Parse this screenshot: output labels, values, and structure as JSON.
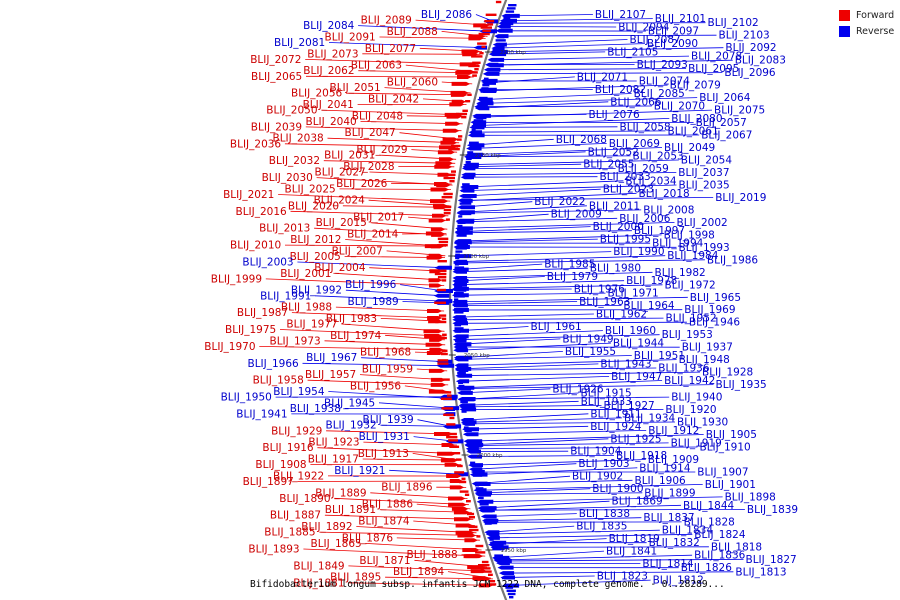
{
  "colors": {
    "forward": "#ee0000",
    "reverse": "#0000ee",
    "forward_label": "#cc0000",
    "reverse_label": "#0000cc",
    "backbone": "#777777"
  },
  "legend": {
    "forward_label": "Forward",
    "reverse_label": "Reverse"
  },
  "caption": "Bifidobacterium longum subsp. infantis JCM 1222 DNA, complete genome. - 0..28289...",
  "ticks": [
    "2200 kbp",
    "2150 kbp",
    "2100 kbp",
    "2050 kbp",
    "2000 kbp",
    "1950 kbp"
  ],
  "labels_left": [
    {
      "text": "BLIJ_2086",
      "s": "r"
    },
    {
      "text": "BLIJ_2089",
      "s": "f"
    },
    {
      "text": "BLIJ_2084",
      "s": "r"
    },
    {
      "text": "BLIJ_2088",
      "s": "f"
    },
    {
      "text": "BLIJ_2091",
      "s": "f"
    },
    {
      "text": "BLIJ_2081",
      "s": "r"
    },
    {
      "text": "BLIJ_2077",
      "s": "f"
    },
    {
      "text": "BLIJ_2073",
      "s": "f"
    },
    {
      "text": "BLIJ_2072",
      "s": "f"
    },
    {
      "text": "BLIJ_2063",
      "s": "f"
    },
    {
      "text": "BLIJ_2062",
      "s": "f"
    },
    {
      "text": "BLIJ_2065",
      "s": "f"
    },
    {
      "text": "BLIJ_2060",
      "s": "f"
    },
    {
      "text": "BLIJ_2051",
      "s": "f"
    },
    {
      "text": "BLIJ_2056",
      "s": "f"
    },
    {
      "text": "BLIJ_2042",
      "s": "f"
    },
    {
      "text": "BLIJ_2041",
      "s": "f"
    },
    {
      "text": "BLIJ_2050",
      "s": "f"
    },
    {
      "text": "BLIJ_2048",
      "s": "f"
    },
    {
      "text": "BLIJ_2040",
      "s": "f"
    },
    {
      "text": "BLIJ_2039",
      "s": "f"
    },
    {
      "text": "BLIJ_2047",
      "s": "f"
    },
    {
      "text": "BLIJ_2038",
      "s": "f"
    },
    {
      "text": "BLIJ_2036",
      "s": "f"
    },
    {
      "text": "BLIJ_2029",
      "s": "f"
    },
    {
      "text": "BLIJ_2031",
      "s": "f"
    },
    {
      "text": "BLIJ_2032",
      "s": "f"
    },
    {
      "text": "BLIJ_2028",
      "s": "f"
    },
    {
      "text": "BLIJ_2027",
      "s": "f"
    },
    {
      "text": "BLIJ_2030",
      "s": "f"
    },
    {
      "text": "BLIJ_2026",
      "s": "f"
    },
    {
      "text": "BLIJ_2025",
      "s": "f"
    },
    {
      "text": "BLIJ_2021",
      "s": "f"
    },
    {
      "text": "BLIJ_2024",
      "s": "f"
    },
    {
      "text": "BLIJ_2020",
      "s": "f"
    },
    {
      "text": "BLIJ_2016",
      "s": "f"
    },
    {
      "text": "BLIJ_2017",
      "s": "f"
    },
    {
      "text": "BLIJ_2015",
      "s": "f"
    },
    {
      "text": "BLIJ_2013",
      "s": "f"
    },
    {
      "text": "BLIJ_2014",
      "s": "f"
    },
    {
      "text": "BLIJ_2012",
      "s": "f"
    },
    {
      "text": "BLIJ_2010",
      "s": "f"
    },
    {
      "text": "BLIJ_2007",
      "s": "f"
    },
    {
      "text": "BLIJ_2005",
      "s": "f"
    },
    {
      "text": "BLIJ_2003",
      "s": "r"
    },
    {
      "text": "BLIJ_2004",
      "s": "f"
    },
    {
      "text": "BLIJ_2001",
      "s": "f"
    },
    {
      "text": "BLIJ_1999",
      "s": "f"
    },
    {
      "text": "BLIJ_1996",
      "s": "r"
    },
    {
      "text": "BLIJ_1992",
      "s": "r"
    },
    {
      "text": "BLIJ_1991",
      "s": "r"
    },
    {
      "text": "BLIJ_1989",
      "s": "r"
    },
    {
      "text": "BLIJ_1988",
      "s": "f"
    },
    {
      "text": "BLIJ_1987",
      "s": "f"
    },
    {
      "text": "BLIJ_1983",
      "s": "f"
    },
    {
      "text": "BLIJ_1977",
      "s": "f"
    },
    {
      "text": "BLIJ_1975",
      "s": "f"
    },
    {
      "text": "BLIJ_1974",
      "s": "f"
    },
    {
      "text": "BLIJ_1973",
      "s": "f"
    },
    {
      "text": "BLIJ_1970",
      "s": "f"
    },
    {
      "text": "BLIJ_1968",
      "s": "f"
    },
    {
      "text": "BLIJ_1967",
      "s": "r"
    },
    {
      "text": "BLIJ_1966",
      "s": "r"
    },
    {
      "text": "BLIJ_1959",
      "s": "f"
    },
    {
      "text": "BLIJ_1957",
      "s": "f"
    },
    {
      "text": "BLIJ_1958",
      "s": "f"
    },
    {
      "text": "BLIJ_1956",
      "s": "f"
    },
    {
      "text": "BLIJ_1954",
      "s": "r"
    },
    {
      "text": "BLIJ_1950",
      "s": "r"
    },
    {
      "text": "BLIJ_1945",
      "s": "r"
    },
    {
      "text": "BLIJ_1938",
      "s": "r"
    },
    {
      "text": "BLIJ_1941",
      "s": "r"
    },
    {
      "text": "BLIJ_1939",
      "s": "r"
    },
    {
      "text": "BLIJ_1932",
      "s": "r"
    },
    {
      "text": "BLIJ_1929",
      "s": "f"
    },
    {
      "text": "BLIJ_1931",
      "s": "r"
    },
    {
      "text": "BLIJ_1923",
      "s": "f"
    },
    {
      "text": "BLIJ_1916",
      "s": "f"
    },
    {
      "text": "BLIJ_1913",
      "s": "f"
    },
    {
      "text": "BLIJ_1917",
      "s": "f"
    },
    {
      "text": "BLIJ_1908",
      "s": "f"
    },
    {
      "text": "BLIJ_1921",
      "s": "r"
    },
    {
      "text": "BLIJ_1922",
      "s": "f"
    },
    {
      "text": "BLIJ_1897",
      "s": "f"
    },
    {
      "text": "BLIJ_1896",
      "s": "f"
    },
    {
      "text": "BLIJ_1889",
      "s": "f"
    },
    {
      "text": "BLIJ_1890",
      "s": "f"
    },
    {
      "text": "BLIJ_1886",
      "s": "f"
    },
    {
      "text": "BLIJ_1891",
      "s": "f"
    },
    {
      "text": "BLIJ_1887",
      "s": "f"
    },
    {
      "text": "BLIJ_1874",
      "s": "f"
    },
    {
      "text": "BLIJ_1892",
      "s": "f"
    },
    {
      "text": "BLIJ_1885",
      "s": "f"
    },
    {
      "text": "BLIJ_1876",
      "s": "f"
    },
    {
      "text": "BLIJ_1865",
      "s": "f"
    },
    {
      "text": "BLIJ_1893",
      "s": "f"
    },
    {
      "text": "BLIJ_1888",
      "s": "f"
    },
    {
      "text": "BLIJ_1871",
      "s": "f"
    },
    {
      "text": "BLIJ_1849",
      "s": "f"
    },
    {
      "text": "BLIJ_1894",
      "s": "f"
    },
    {
      "text": "BLIJ_1895",
      "s": "f"
    },
    {
      "text": "BLIJ_1881",
      "s": "f"
    }
  ],
  "labels_right": [
    {
      "text": "BLIJ_2107",
      "s": "r"
    },
    {
      "text": "BLIJ_2101",
      "s": "r"
    },
    {
      "text": "BLIJ_2102",
      "s": "r"
    },
    {
      "text": "BLIJ_2094",
      "s": "r"
    },
    {
      "text": "BLIJ_2097",
      "s": "r"
    },
    {
      "text": "BLIJ_2103",
      "s": "r"
    },
    {
      "text": "BLIJ_2087",
      "s": "r"
    },
    {
      "text": "BLIJ_2090",
      "s": "r"
    },
    {
      "text": "BLIJ_2092",
      "s": "r"
    },
    {
      "text": "BLIJ_2105",
      "s": "r"
    },
    {
      "text": "BLIJ_2078",
      "s": "r"
    },
    {
      "text": "BLIJ_2083",
      "s": "r"
    },
    {
      "text": "BLIJ_2093",
      "s": "r"
    },
    {
      "text": "BLIJ_2095",
      "s": "r"
    },
    {
      "text": "BLIJ_2096",
      "s": "r"
    },
    {
      "text": "BLIJ_2071",
      "s": "r"
    },
    {
      "text": "BLIJ_2074",
      "s": "r"
    },
    {
      "text": "BLIJ_2079",
      "s": "r"
    },
    {
      "text": "BLIJ_2082",
      "s": "r"
    },
    {
      "text": "BLIJ_2085",
      "s": "r"
    },
    {
      "text": "BLIJ_2064",
      "s": "r"
    },
    {
      "text": "BLIJ_2066",
      "s": "r"
    },
    {
      "text": "BLIJ_2070",
      "s": "r"
    },
    {
      "text": "BLIJ_2075",
      "s": "r"
    },
    {
      "text": "BLIJ_2076",
      "s": "r"
    },
    {
      "text": "BLIJ_2080",
      "s": "r"
    },
    {
      "text": "BLIJ_2057",
      "s": "r"
    },
    {
      "text": "BLIJ_2058",
      "s": "r"
    },
    {
      "text": "BLIJ_2061",
      "s": "r"
    },
    {
      "text": "BLIJ_2067",
      "s": "r"
    },
    {
      "text": "BLIJ_2068",
      "s": "r"
    },
    {
      "text": "BLIJ_2069",
      "s": "r"
    },
    {
      "text": "BLIJ_2049",
      "s": "r"
    },
    {
      "text": "BLIJ_2052",
      "s": "r"
    },
    {
      "text": "BLIJ_2053",
      "s": "r"
    },
    {
      "text": "BLIJ_2054",
      "s": "r"
    },
    {
      "text": "BLIJ_2055",
      "s": "r"
    },
    {
      "text": "BLIJ_2059",
      "s": "r"
    },
    {
      "text": "BLIJ_2037",
      "s": "r"
    },
    {
      "text": "BLIJ_2033",
      "s": "r"
    },
    {
      "text": "BLIJ_2034",
      "s": "r"
    },
    {
      "text": "BLIJ_2035",
      "s": "r"
    },
    {
      "text": "BLIJ_2023",
      "s": "r"
    },
    {
      "text": "BLIJ_2018",
      "s": "r"
    },
    {
      "text": "BLIJ_2019",
      "s": "r"
    },
    {
      "text": "BLIJ_2022",
      "s": "r"
    },
    {
      "text": "BLIJ_2011",
      "s": "r"
    },
    {
      "text": "BLIJ_2008",
      "s": "r"
    },
    {
      "text": "BLIJ_2009",
      "s": "r"
    },
    {
      "text": "BLIJ_2006",
      "s": "r"
    },
    {
      "text": "BLIJ_2002",
      "s": "r"
    },
    {
      "text": "BLIJ_2000",
      "s": "r"
    },
    {
      "text": "BLIJ_1997",
      "s": "r"
    },
    {
      "text": "BLIJ_1998",
      "s": "r"
    },
    {
      "text": "BLIJ_1995",
      "s": "r"
    },
    {
      "text": "BLIJ_1994",
      "s": "r"
    },
    {
      "text": "BLIJ_1993",
      "s": "r"
    },
    {
      "text": "BLIJ_1990",
      "s": "r"
    },
    {
      "text": "BLIJ_1984",
      "s": "r"
    },
    {
      "text": "BLIJ_1986",
      "s": "r"
    },
    {
      "text": "BLIJ_1985",
      "s": "r"
    },
    {
      "text": "BLIJ_1980",
      "s": "r"
    },
    {
      "text": "BLIJ_1982",
      "s": "r"
    },
    {
      "text": "BLIJ_1979",
      "s": "r"
    },
    {
      "text": "BLIJ_1978",
      "s": "r"
    },
    {
      "text": "BLIJ_1972",
      "s": "r"
    },
    {
      "text": "BLIJ_1976",
      "s": "r"
    },
    {
      "text": "BLIJ_1971",
      "s": "r"
    },
    {
      "text": "BLIJ_1965",
      "s": "r"
    },
    {
      "text": "BLIJ_1963",
      "s": "r"
    },
    {
      "text": "BLIJ_1964",
      "s": "r"
    },
    {
      "text": "BLIJ_1969",
      "s": "r"
    },
    {
      "text": "BLIJ_1962",
      "s": "r"
    },
    {
      "text": "BLIJ_1952",
      "s": "r"
    },
    {
      "text": "BLIJ_1946",
      "s": "r"
    },
    {
      "text": "BLIJ_1961",
      "s": "r"
    },
    {
      "text": "BLIJ_1960",
      "s": "r"
    },
    {
      "text": "BLIJ_1953",
      "s": "r"
    },
    {
      "text": "BLIJ_1949",
      "s": "r"
    },
    {
      "text": "BLIJ_1944",
      "s": "r"
    },
    {
      "text": "BLIJ_1937",
      "s": "r"
    },
    {
      "text": "BLIJ_1955",
      "s": "r"
    },
    {
      "text": "BLIJ_1951",
      "s": "r"
    },
    {
      "text": "BLIJ_1948",
      "s": "r"
    },
    {
      "text": "BLIJ_1943",
      "s": "r"
    },
    {
      "text": "BLIJ_1936",
      "s": "r"
    },
    {
      "text": "BLIJ_1928",
      "s": "r"
    },
    {
      "text": "BLIJ_1947",
      "s": "r"
    },
    {
      "text": "BLIJ_1942",
      "s": "r"
    },
    {
      "text": "BLIJ_1935",
      "s": "r"
    },
    {
      "text": "BLIJ_1926",
      "s": "r"
    },
    {
      "text": "BLIJ_1915",
      "s": "r"
    },
    {
      "text": "BLIJ_1940",
      "s": "r"
    },
    {
      "text": "BLIJ_1933",
      "s": "r"
    },
    {
      "text": "BLIJ_1927",
      "s": "r"
    },
    {
      "text": "BLIJ_1920",
      "s": "r"
    },
    {
      "text": "BLIJ_1911",
      "s": "r"
    },
    {
      "text": "BLIJ_1934",
      "s": "r"
    },
    {
      "text": "BLIJ_1930",
      "s": "r"
    },
    {
      "text": "BLIJ_1924",
      "s": "r"
    },
    {
      "text": "BLIJ_1912",
      "s": "r"
    },
    {
      "text": "BLIJ_1905",
      "s": "r"
    },
    {
      "text": "BLIJ_1925",
      "s": "r"
    },
    {
      "text": "BLIJ_1919",
      "s": "r"
    },
    {
      "text": "BLIJ_1910",
      "s": "r"
    },
    {
      "text": "BLIJ_1904",
      "s": "r"
    },
    {
      "text": "BLIJ_1918",
      "s": "r"
    },
    {
      "text": "BLIJ_1909",
      "s": "r"
    },
    {
      "text": "BLIJ_1903",
      "s": "r"
    },
    {
      "text": "BLIJ_1914",
      "s": "r"
    },
    {
      "text": "BLIJ_1907",
      "s": "r"
    },
    {
      "text": "BLIJ_1902",
      "s": "r"
    },
    {
      "text": "BLIJ_1906",
      "s": "r"
    },
    {
      "text": "BLIJ_1901",
      "s": "r"
    },
    {
      "text": "BLIJ_1900",
      "s": "r"
    },
    {
      "text": "BLIJ_1899",
      "s": "r"
    },
    {
      "text": "BLIJ_1898",
      "s": "r"
    },
    {
      "text": "BLIJ_1869",
      "s": "r"
    },
    {
      "text": "BLIJ_1844",
      "s": "r"
    },
    {
      "text": "BLIJ_1839",
      "s": "r"
    },
    {
      "text": "BLIJ_1838",
      "s": "r"
    },
    {
      "text": "BLIJ_1837",
      "s": "r"
    },
    {
      "text": "BLIJ_1828",
      "s": "r"
    },
    {
      "text": "BLIJ_1835",
      "s": "r"
    },
    {
      "text": "BLIJ_1834",
      "s": "r"
    },
    {
      "text": "BLIJ_1824",
      "s": "r"
    },
    {
      "text": "BLIJ_1819",
      "s": "r"
    },
    {
      "text": "BLIJ_1832",
      "s": "r"
    },
    {
      "text": "BLIJ_1818",
      "s": "r"
    },
    {
      "text": "BLIJ_1841",
      "s": "r"
    },
    {
      "text": "BLIJ_1836",
      "s": "r"
    },
    {
      "text": "BLIJ_1827",
      "s": "r"
    },
    {
      "text": "BLIJ_1814",
      "s": "r"
    },
    {
      "text": "BLIJ_1826",
      "s": "r"
    },
    {
      "text": "BLIJ_1813",
      "s": "r"
    },
    {
      "text": "BLIJ_1823",
      "s": "r"
    },
    {
      "text": "BLIJ_1812",
      "s": "r"
    }
  ]
}
